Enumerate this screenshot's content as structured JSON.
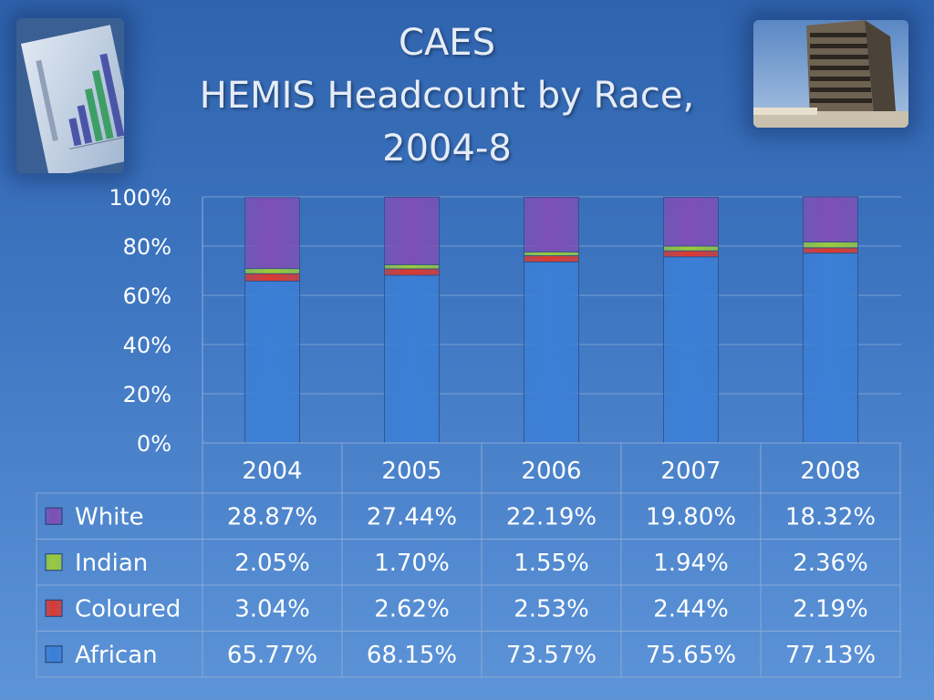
{
  "title": {
    "line1": "CAES",
    "line2": "HEMIS Headcount by Race,",
    "line3": "2004-8"
  },
  "images": {
    "left": "efficiency-chart-photo",
    "right": "office-building-photo"
  },
  "chart_data": {
    "type": "bar",
    "stacked": true,
    "normalized": true,
    "categories": [
      "2004",
      "2005",
      "2006",
      "2007",
      "2008"
    ],
    "series": [
      {
        "name": "African",
        "color": "#3b7fd6",
        "values": [
          65.77,
          68.15,
          73.57,
          75.65,
          77.13
        ],
        "labels": [
          "65.77%",
          "68.15%",
          "73.57%",
          "75.65%",
          "77.13%"
        ]
      },
      {
        "name": "Coloured",
        "color": "#d93a32",
        "values": [
          3.04,
          2.62,
          2.53,
          2.44,
          2.19
        ],
        "labels": [
          "3.04%",
          "2.62%",
          "2.53%",
          "2.44%",
          "2.19%"
        ]
      },
      {
        "name": "Indian",
        "color": "#9acb3c",
        "values": [
          2.05,
          1.7,
          1.55,
          1.94,
          2.36
        ],
        "labels": [
          "2.05%",
          "1.70%",
          "1.55%",
          "1.94%",
          "2.36%"
        ]
      },
      {
        "name": "White",
        "color": "#7e4fb6",
        "values": [
          28.87,
          27.44,
          22.19,
          19.8,
          18.32
        ],
        "labels": [
          "28.87%",
          "27.44%",
          "22.19%",
          "19.80%",
          "18.32%"
        ]
      }
    ],
    "table_row_order": [
      "White",
      "Indian",
      "Coloured",
      "African"
    ],
    "ylim": [
      0,
      100
    ],
    "yticks": [
      "0%",
      "20%",
      "40%",
      "60%",
      "80%",
      "100%"
    ],
    "grid": true,
    "legend": "data-table"
  }
}
